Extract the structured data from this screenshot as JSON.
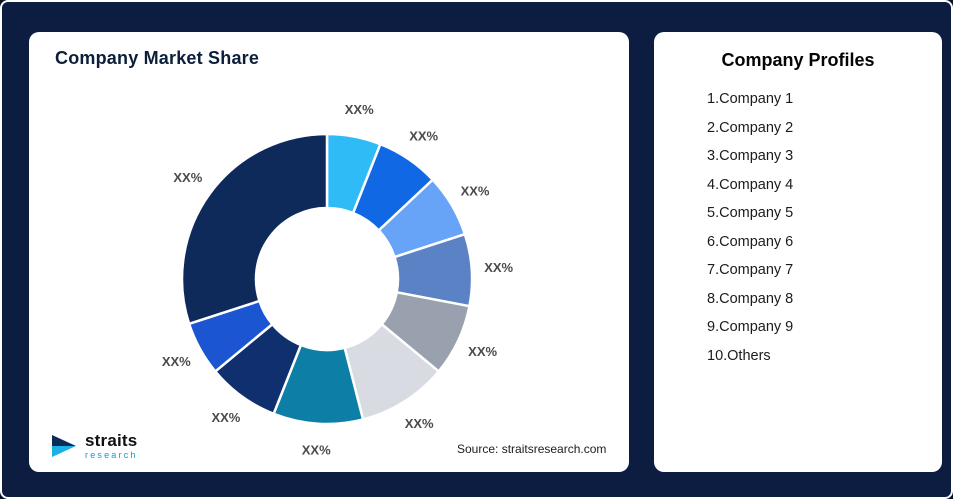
{
  "frame": {
    "background": "#0d1d42",
    "border_color": "#ffffff"
  },
  "market_share_card": {
    "title": "Company Market Share",
    "source": "Source: straitsresearch.com",
    "logo_text": "straits",
    "logo_subtext": "research"
  },
  "profiles_card": {
    "title": "Company Profiles",
    "items": [
      "1.Company 1",
      "2.Company 2",
      "3.Company 3",
      "4.Company 4",
      "5.Company 5",
      "6.Company 6",
      "7.Company 7",
      "8.Company 8",
      "9.Company 9",
      "10.Others"
    ]
  },
  "chart_data": {
    "type": "pie",
    "title": "Company Market Share",
    "donut": true,
    "inner_radius_ratio": 0.49,
    "legend_position": "none",
    "start_angle_deg": 0,
    "direction": "clockwise",
    "segments": [
      {
        "label": "XX%",
        "value": 6,
        "color": "#2fbcf6"
      },
      {
        "label": "XX%",
        "value": 7,
        "color": "#1068e4"
      },
      {
        "label": "XX%",
        "value": 7,
        "color": "#67a3f7"
      },
      {
        "label": "XX%",
        "value": 8,
        "color": "#5b82c4"
      },
      {
        "label": "XX%",
        "value": 8,
        "color": "#98a1ad"
      },
      {
        "label": "XX%",
        "value": 10,
        "color": "#d8dce2"
      },
      {
        "label": "XX%",
        "value": 10,
        "color": "#0d7fa6"
      },
      {
        "label": "XX%",
        "value": 8,
        "color": "#102f6e"
      },
      {
        "label": "XX%",
        "value": 6,
        "color": "#1b55d2"
      },
      {
        "label": "XX%",
        "value": 30,
        "color": "#0d2a5a"
      }
    ]
  }
}
